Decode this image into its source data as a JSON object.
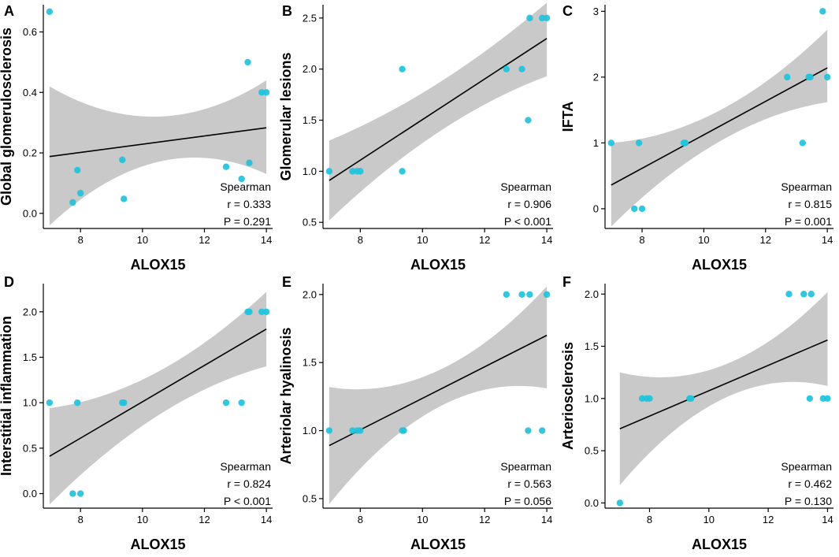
{
  "colors": {
    "point": "#1fc3dc",
    "point_dark": "#1a9fb3",
    "band": "#c9c9c9",
    "line": "#000000",
    "axis": "#000000"
  },
  "chart_data": [
    {
      "type": "scatter",
      "panel": "A",
      "xlabel": "ALOX15",
      "ylabel": "Global glomerulosclerosis",
      "xlim": [
        6.8,
        14.2
      ],
      "ylim": [
        -0.05,
        0.69
      ],
      "xticks": [
        8,
        10,
        12,
        14
      ],
      "yticks": [
        0.0,
        0.2,
        0.4,
        0.6
      ],
      "ytick_labels": [
        "0.0",
        "0.2",
        "0.4",
        "0.6"
      ],
      "points": [
        {
          "x": 7.0,
          "y": 0.667
        },
        {
          "x": 7.75,
          "y": 0.036
        },
        {
          "x": 7.9,
          "y": 0.143
        },
        {
          "x": 8.0,
          "y": 0.067
        },
        {
          "x": 9.35,
          "y": 0.177
        },
        {
          "x": 9.4,
          "y": 0.048
        },
        {
          "x": 12.7,
          "y": 0.154
        },
        {
          "x": 13.2,
          "y": 0.114
        },
        {
          "x": 13.4,
          "y": 0.5
        },
        {
          "x": 13.45,
          "y": 0.167
        },
        {
          "x": 13.85,
          "y": 0.4
        },
        {
          "x": 14.0,
          "y": 0.4
        }
      ],
      "fit": {
        "x0": 7.0,
        "y0": 0.188,
        "x1": 14.0,
        "y1": 0.283
      },
      "band": {
        "x": [
          7.0,
          10.5,
          14.0
        ],
        "lower": [
          -0.04,
          0.17,
          0.13
        ],
        "upper": [
          0.42,
          0.32,
          0.44
        ]
      },
      "stats": {
        "method": "Spearman",
        "r": "r = 0.333",
        "p": "P = 0.291"
      }
    },
    {
      "type": "scatter",
      "panel": "B",
      "xlabel": "ALOX15",
      "ylabel": "Glomerular lesions",
      "xlim": [
        6.8,
        14.2
      ],
      "ylim": [
        0.44,
        2.63
      ],
      "xticks": [
        8,
        10,
        12,
        14
      ],
      "yticks": [
        0.5,
        1.0,
        1.5,
        2.0,
        2.5
      ],
      "ytick_labels": [
        "0.5",
        "1.0",
        "1.5",
        "2.0",
        "2.5"
      ],
      "points": [
        {
          "x": 7.0,
          "y": 1.0
        },
        {
          "x": 7.75,
          "y": 1.0
        },
        {
          "x": 7.9,
          "y": 1.0
        },
        {
          "x": 8.0,
          "y": 1.0
        },
        {
          "x": 9.35,
          "y": 2.0
        },
        {
          "x": 9.35,
          "y": 1.0
        },
        {
          "x": 12.7,
          "y": 2.0
        },
        {
          "x": 13.2,
          "y": 2.0
        },
        {
          "x": 13.4,
          "y": 1.5
        },
        {
          "x": 13.45,
          "y": 2.5
        },
        {
          "x": 13.85,
          "y": 2.5
        },
        {
          "x": 14.0,
          "y": 2.5
        }
      ],
      "fit": {
        "x0": 7.0,
        "y0": 0.91,
        "x1": 14.0,
        "y1": 2.3
      },
      "band": {
        "x": [
          7.0,
          10.5,
          14.0
        ],
        "lower": [
          0.52,
          1.38,
          1.93
        ],
        "upper": [
          1.3,
          1.86,
          2.65
        ]
      },
      "stats": {
        "method": "Spearman",
        "r": "r = 0.906",
        "p": "P < 0.001"
      }
    },
    {
      "type": "scatter",
      "panel": "C",
      "xlabel": "ALOX15",
      "ylabel": "IFTA",
      "xlim": [
        6.8,
        14.2
      ],
      "ylim": [
        -0.3,
        3.1
      ],
      "xticks": [
        8,
        10,
        12,
        14
      ],
      "yticks": [
        0,
        1,
        2,
        3
      ],
      "ytick_labels": [
        "0",
        "1",
        "2",
        "3"
      ],
      "points": [
        {
          "x": 7.0,
          "y": 1.0
        },
        {
          "x": 7.75,
          "y": 0.0
        },
        {
          "x": 7.9,
          "y": 1.0
        },
        {
          "x": 8.0,
          "y": 0.0
        },
        {
          "x": 9.35,
          "y": 1.0
        },
        {
          "x": 9.4,
          "y": 1.0
        },
        {
          "x": 12.7,
          "y": 2.0
        },
        {
          "x": 13.2,
          "y": 1.0
        },
        {
          "x": 13.4,
          "y": 2.0
        },
        {
          "x": 13.45,
          "y": 2.0
        },
        {
          "x": 13.85,
          "y": 3.0
        },
        {
          "x": 14.0,
          "y": 2.0
        }
      ],
      "fit": {
        "x0": 7.0,
        "y0": 0.36,
        "x1": 14.0,
        "y1": 2.14
      },
      "band": {
        "x": [
          7.0,
          10.5,
          14.0
        ],
        "lower": [
          -0.27,
          1.02,
          1.62
        ],
        "upper": [
          1.0,
          1.49,
          2.72
        ]
      },
      "stats": {
        "method": "Spearman",
        "r": "r = 0.815",
        "p": "P = 0.001"
      }
    },
    {
      "type": "scatter",
      "panel": "D",
      "xlabel": "ALOX15",
      "ylabel": "Interstitial inflammation",
      "xlim": [
        6.8,
        14.2
      ],
      "ylim": [
        -0.16,
        2.31
      ],
      "xticks": [
        8,
        10,
        12,
        14
      ],
      "yticks": [
        0.0,
        0.5,
        1.0,
        1.5,
        2.0
      ],
      "ytick_labels": [
        "0.0",
        "0.5",
        "1.0",
        "1.5",
        "2.0"
      ],
      "points": [
        {
          "x": 7.0,
          "y": 1.0
        },
        {
          "x": 7.75,
          "y": 0.0
        },
        {
          "x": 7.9,
          "y": 1.0
        },
        {
          "x": 8.0,
          "y": 0.0
        },
        {
          "x": 9.35,
          "y": 1.0
        },
        {
          "x": 9.4,
          "y": 1.0
        },
        {
          "x": 12.7,
          "y": 1.0
        },
        {
          "x": 13.2,
          "y": 1.0
        },
        {
          "x": 13.4,
          "y": 2.0
        },
        {
          "x": 13.45,
          "y": 2.0
        },
        {
          "x": 13.85,
          "y": 2.0
        },
        {
          "x": 14.0,
          "y": 2.0
        }
      ],
      "fit": {
        "x0": 7.0,
        "y0": 0.41,
        "x1": 14.0,
        "y1": 1.81
      },
      "band": {
        "x": [
          7.0,
          10.5,
          14.0
        ],
        "lower": [
          -0.12,
          0.86,
          1.4
        ],
        "upper": [
          0.94,
          1.34,
          2.22
        ]
      },
      "stats": {
        "method": "Spearman",
        "r": "r = 0.824",
        "p": "P < 0.001"
      }
    },
    {
      "type": "scatter",
      "panel": "E",
      "xlabel": "ALOX15",
      "ylabel": "Arteriolar hyalinosis",
      "xlim": [
        6.8,
        14.2
      ],
      "ylim": [
        0.43,
        2.08
      ],
      "xticks": [
        8,
        10,
        12,
        14
      ],
      "yticks": [
        0.5,
        1.0,
        1.5,
        2.0
      ],
      "ytick_labels": [
        "0.5",
        "1.0",
        "1.5",
        "2.0"
      ],
      "points": [
        {
          "x": 7.0,
          "y": 1.0
        },
        {
          "x": 7.75,
          "y": 1.0
        },
        {
          "x": 7.9,
          "y": 1.0
        },
        {
          "x": 8.0,
          "y": 1.0
        },
        {
          "x": 9.35,
          "y": 1.0
        },
        {
          "x": 9.4,
          "y": 1.0
        },
        {
          "x": 12.7,
          "y": 2.0
        },
        {
          "x": 13.2,
          "y": 2.0
        },
        {
          "x": 13.4,
          "y": 1.0
        },
        {
          "x": 13.45,
          "y": 2.0
        },
        {
          "x": 13.85,
          "y": 1.0
        },
        {
          "x": 14.0,
          "y": 2.0
        }
      ],
      "fit": {
        "x0": 7.0,
        "y0": 0.89,
        "x1": 14.0,
        "y1": 1.7
      },
      "band": {
        "x": [
          7.0,
          10.5,
          14.0
        ],
        "lower": [
          0.46,
          1.17,
          1.31
        ],
        "upper": [
          1.32,
          1.44,
          2.06
        ]
      },
      "stats": {
        "method": "Spearman",
        "r": "r = 0.563",
        "p": "P = 0.056"
      }
    },
    {
      "type": "scatter",
      "panel": "F",
      "xlabel": "ALOX15",
      "ylabel": "Arteriosclerosis",
      "xlim": [
        6.5,
        14.2
      ],
      "ylim": [
        -0.05,
        2.1
      ],
      "xticks": [
        8,
        10,
        12,
        14
      ],
      "yticks": [
        0.0,
        0.5,
        1.0,
        1.5,
        2.0
      ],
      "ytick_labels": [
        "0.0",
        "0.5",
        "1.0",
        "1.5",
        "2.0"
      ],
      "points": [
        {
          "x": 7.0,
          "y": 0.0
        },
        {
          "x": 7.75,
          "y": 1.0
        },
        {
          "x": 7.9,
          "y": 1.0
        },
        {
          "x": 8.0,
          "y": 1.0
        },
        {
          "x": 9.35,
          "y": 1.0
        },
        {
          "x": 9.4,
          "y": 1.0
        },
        {
          "x": 12.7,
          "y": 2.0
        },
        {
          "x": 13.2,
          "y": 2.0
        },
        {
          "x": 13.4,
          "y": 1.0
        },
        {
          "x": 13.45,
          "y": 2.0
        },
        {
          "x": 13.85,
          "y": 1.0
        },
        {
          "x": 14.0,
          "y": 1.0
        }
      ],
      "fit": {
        "x0": 7.0,
        "y0": 0.71,
        "x1": 14.0,
        "y1": 1.56
      },
      "band": {
        "x": [
          7.0,
          10.5,
          14.0
        ],
        "lower": [
          0.17,
          1.0,
          1.12
        ],
        "upper": [
          1.25,
          1.32,
          2.02
        ]
      },
      "stats": {
        "method": "Spearman",
        "r": "r = 0.462",
        "p": "P = 0.130"
      }
    }
  ]
}
